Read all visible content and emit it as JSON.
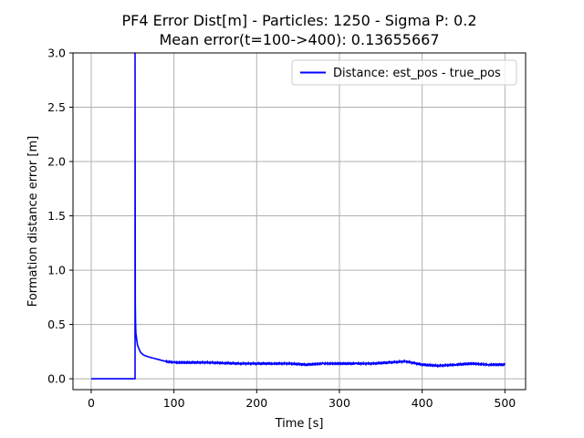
{
  "chart_data": {
    "type": "line",
    "title": "PF4 Error Dist[m] - Particles: 1250 - Sigma P: 0.2",
    "subtitle": "Mean error(t=100->400): 0.13655667",
    "xlabel": "Time [s]",
    "ylabel": "Formation distance error [m]",
    "xlim": [
      -22,
      525
    ],
    "ylim": [
      -0.1,
      3.0
    ],
    "xticks": [
      0,
      100,
      200,
      300,
      400,
      500
    ],
    "xtick_labels": [
      "0",
      "100",
      "200",
      "300",
      "400",
      "500"
    ],
    "yticks": [
      0.0,
      0.5,
      1.0,
      1.5,
      2.0,
      2.5,
      3.0
    ],
    "ytick_labels": [
      "0.0",
      "0.5",
      "1.0",
      "1.5",
      "2.0",
      "2.5",
      "3.0"
    ],
    "grid": true,
    "legend_position": "top-right",
    "series": [
      {
        "name": "Distance: est_pos - true_pos",
        "color": "#0000ff",
        "x": [
          0,
          53,
          53,
          53.3,
          53.6,
          54,
          55,
          56,
          58,
          60,
          63,
          66,
          70,
          75,
          80,
          90,
          100,
          120,
          140,
          160,
          180,
          200,
          220,
          240,
          260,
          280,
          300,
          320,
          340,
          360,
          380,
          400,
          420,
          440,
          460,
          480,
          500
        ],
        "y": [
          0.0,
          0.0,
          3.0,
          0.7,
          0.52,
          0.42,
          0.36,
          0.31,
          0.27,
          0.24,
          0.22,
          0.21,
          0.2,
          0.19,
          0.18,
          0.16,
          0.15,
          0.15,
          0.15,
          0.145,
          0.14,
          0.14,
          0.14,
          0.14,
          0.13,
          0.14,
          0.14,
          0.14,
          0.14,
          0.15,
          0.16,
          0.13,
          0.12,
          0.13,
          0.14,
          0.13,
          0.13
        ]
      }
    ]
  }
}
